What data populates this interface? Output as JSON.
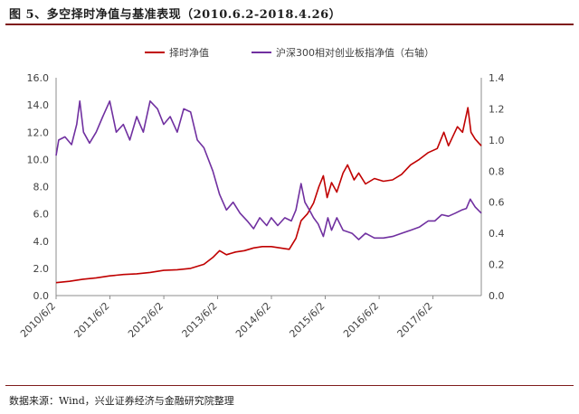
{
  "header": {
    "title": "图 5、多空择时净值与基准表现（2010.6.2-2018.4.26）"
  },
  "footer": {
    "source": "数据来源：Wind，兴业证券经济与金融研究院整理"
  },
  "chart_data": {
    "type": "line",
    "title": "图 5、多空择时净值与基准表现（2010.6.2-2018.4.26）",
    "xlabel": "",
    "ylabel": "",
    "x_range": [
      "2010-06-02",
      "2018-04-26"
    ],
    "x_ticks": [
      "2010/6/2",
      "2011/6/2",
      "2012/6/2",
      "2013/6/2",
      "2014/6/2",
      "2015/6/2",
      "2016/6/2",
      "2017/6/2"
    ],
    "y_left": {
      "range": [
        0,
        16
      ],
      "ticks": [
        "0.0",
        "2.0",
        "4.0",
        "6.0",
        "8.0",
        "10.0",
        "12.0",
        "14.0",
        "16.0"
      ]
    },
    "y_right": {
      "range": [
        0,
        1.4
      ],
      "ticks": [
        "0.0",
        "0.2",
        "0.4",
        "0.6",
        "0.8",
        "1.0",
        "1.2",
        "1.4"
      ]
    },
    "grid": false,
    "legend": "top-center",
    "series": [
      {
        "name": "择时净值",
        "axis": "left",
        "color": "#c00000",
        "points": [
          [
            "2010-06-02",
            0.95
          ],
          [
            "2010-09-01",
            1.05
          ],
          [
            "2010-12-01",
            1.2
          ],
          [
            "2011-03-01",
            1.3
          ],
          [
            "2011-06-01",
            1.45
          ],
          [
            "2011-09-01",
            1.55
          ],
          [
            "2011-12-01",
            1.6
          ],
          [
            "2012-03-01",
            1.7
          ],
          [
            "2012-06-01",
            1.85
          ],
          [
            "2012-09-01",
            1.9
          ],
          [
            "2012-12-01",
            2.0
          ],
          [
            "2013-03-01",
            2.3
          ],
          [
            "2013-05-01",
            2.8
          ],
          [
            "2013-06-15",
            3.3
          ],
          [
            "2013-08-01",
            3.0
          ],
          [
            "2013-10-01",
            3.2
          ],
          [
            "2013-12-01",
            3.3
          ],
          [
            "2014-02-01",
            3.5
          ],
          [
            "2014-04-01",
            3.6
          ],
          [
            "2014-06-01",
            3.6
          ],
          [
            "2014-08-01",
            3.5
          ],
          [
            "2014-10-01",
            3.4
          ],
          [
            "2014-11-15",
            4.2
          ],
          [
            "2014-12-20",
            5.5
          ],
          [
            "2015-02-01",
            6.0
          ],
          [
            "2015-03-15",
            6.8
          ],
          [
            "2015-04-20",
            8.0
          ],
          [
            "2015-05-20",
            8.8
          ],
          [
            "2015-06-15",
            7.2
          ],
          [
            "2015-07-15",
            8.3
          ],
          [
            "2015-08-20",
            7.6
          ],
          [
            "2015-10-01",
            9.0
          ],
          [
            "2015-11-01",
            9.6
          ],
          [
            "2015-12-15",
            8.5
          ],
          [
            "2016-01-15",
            9.0
          ],
          [
            "2016-03-01",
            8.2
          ],
          [
            "2016-05-01",
            8.6
          ],
          [
            "2016-07-01",
            8.4
          ],
          [
            "2016-09-01",
            8.5
          ],
          [
            "2016-11-01",
            8.9
          ],
          [
            "2017-01-01",
            9.6
          ],
          [
            "2017-03-01",
            10.0
          ],
          [
            "2017-05-01",
            10.5
          ],
          [
            "2017-07-01",
            10.8
          ],
          [
            "2017-08-15",
            12.0
          ],
          [
            "2017-09-15",
            11.0
          ],
          [
            "2017-10-15",
            11.7
          ],
          [
            "2017-11-15",
            12.4
          ],
          [
            "2017-12-20",
            12.0
          ],
          [
            "2018-01-25",
            13.8
          ],
          [
            "2018-02-15",
            12.0
          ],
          [
            "2018-03-15",
            11.5
          ],
          [
            "2018-04-26",
            11.0
          ]
        ]
      },
      {
        "name": "沪深300相对创业板指净值（右轴）",
        "axis": "right",
        "color": "#7030a0",
        "points": [
          [
            "2010-06-02",
            0.9
          ],
          [
            "2010-06-20",
            1.0
          ],
          [
            "2010-08-01",
            1.02
          ],
          [
            "2010-09-15",
            0.97
          ],
          [
            "2010-10-20",
            1.1
          ],
          [
            "2010-11-10",
            1.25
          ],
          [
            "2010-12-05",
            1.05
          ],
          [
            "2011-01-15",
            0.98
          ],
          [
            "2011-03-01",
            1.05
          ],
          [
            "2011-04-15",
            1.15
          ],
          [
            "2011-06-01",
            1.25
          ],
          [
            "2011-07-15",
            1.05
          ],
          [
            "2011-09-01",
            1.1
          ],
          [
            "2011-10-15",
            1.0
          ],
          [
            "2011-12-01",
            1.15
          ],
          [
            "2012-01-15",
            1.05
          ],
          [
            "2012-03-01",
            1.25
          ],
          [
            "2012-04-20",
            1.2
          ],
          [
            "2012-06-01",
            1.1
          ],
          [
            "2012-07-15",
            1.15
          ],
          [
            "2012-09-01",
            1.05
          ],
          [
            "2012-10-15",
            1.2
          ],
          [
            "2012-12-01",
            1.18
          ],
          [
            "2013-01-15",
            1.0
          ],
          [
            "2013-03-01",
            0.95
          ],
          [
            "2013-05-01",
            0.8
          ],
          [
            "2013-06-15",
            0.65
          ],
          [
            "2013-08-01",
            0.55
          ],
          [
            "2013-09-15",
            0.6
          ],
          [
            "2013-11-01",
            0.53
          ],
          [
            "2013-12-20",
            0.48
          ],
          [
            "2014-02-01",
            0.43
          ],
          [
            "2014-03-15",
            0.5
          ],
          [
            "2014-05-01",
            0.45
          ],
          [
            "2014-06-01",
            0.5
          ],
          [
            "2014-07-15",
            0.45
          ],
          [
            "2014-09-01",
            0.5
          ],
          [
            "2014-10-15",
            0.48
          ],
          [
            "2014-11-15",
            0.55
          ],
          [
            "2014-12-20",
            0.72
          ],
          [
            "2015-01-15",
            0.6
          ],
          [
            "2015-02-15",
            0.55
          ],
          [
            "2015-03-15",
            0.5
          ],
          [
            "2015-04-15",
            0.46
          ],
          [
            "2015-05-20",
            0.38
          ],
          [
            "2015-06-20",
            0.5
          ],
          [
            "2015-07-15",
            0.42
          ],
          [
            "2015-08-20",
            0.5
          ],
          [
            "2015-10-01",
            0.42
          ],
          [
            "2015-12-01",
            0.4
          ],
          [
            "2016-01-15",
            0.36
          ],
          [
            "2016-03-01",
            0.4
          ],
          [
            "2016-05-01",
            0.37
          ],
          [
            "2016-07-01",
            0.37
          ],
          [
            "2016-09-01",
            0.38
          ],
          [
            "2016-11-01",
            0.4
          ],
          [
            "2017-01-01",
            0.42
          ],
          [
            "2017-03-01",
            0.44
          ],
          [
            "2017-05-01",
            0.48
          ],
          [
            "2017-06-15",
            0.48
          ],
          [
            "2017-08-01",
            0.52
          ],
          [
            "2017-09-15",
            0.51
          ],
          [
            "2017-11-01",
            0.53
          ],
          [
            "2017-12-15",
            0.55
          ],
          [
            "2018-01-15",
            0.56
          ],
          [
            "2018-02-10",
            0.62
          ],
          [
            "2018-03-15",
            0.57
          ],
          [
            "2018-04-26",
            0.53
          ]
        ]
      }
    ]
  }
}
